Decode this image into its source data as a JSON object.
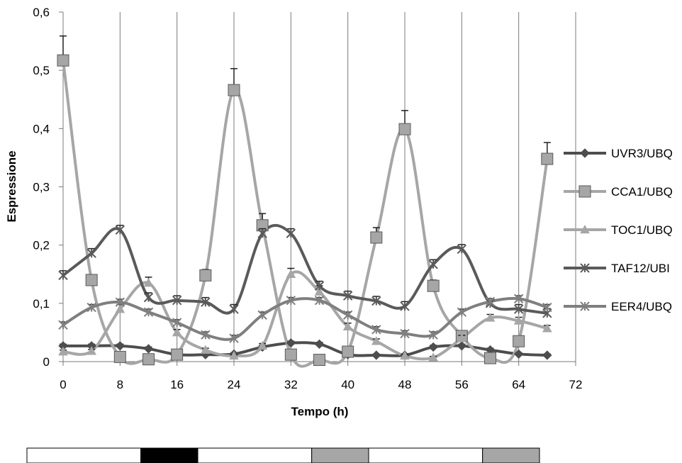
{
  "chart_data": {
    "type": "line",
    "title": "",
    "xlabel": "Tempo (h)",
    "ylabel": "Espressione",
    "xlim": [
      0,
      72
    ],
    "ylim": [
      0,
      0.6
    ],
    "x_ticks": [
      "0",
      "8",
      "16",
      "24",
      "32",
      "40",
      "48",
      "56",
      "64",
      "72"
    ],
    "y_ticks": [
      "0",
      "0,1",
      "0,2",
      "0,3",
      "0,4",
      "0,5",
      "0,6"
    ],
    "vertical_gridlines": true,
    "legend_position": "right",
    "x": [
      0,
      4,
      8,
      12,
      16,
      20,
      24,
      28,
      32,
      36,
      40,
      44,
      48,
      52,
      56,
      60,
      64,
      68
    ],
    "series": [
      {
        "name": "UVR3/UBQ",
        "color": "#4d4d4d",
        "marker": "diamond",
        "values": [
          0.027,
          0.027,
          0.027,
          0.022,
          0.012,
          0.012,
          0.013,
          0.025,
          0.032,
          0.03,
          0.012,
          0.011,
          0.011,
          0.025,
          0.027,
          0.02,
          0.013,
          0.011
        ],
        "error": [
          0.003,
          0.003,
          0.003,
          0.003,
          0.002,
          0.002,
          0.002,
          0.003,
          0.003,
          0.003,
          0.002,
          0.002,
          0.002,
          0.003,
          0.003,
          0.003,
          0.002,
          0.002
        ]
      },
      {
        "name": "CCA1/UBQ",
        "color": "#a6a6a6",
        "marker": "square",
        "values": [
          0.517,
          0.14,
          0.008,
          0.004,
          0.012,
          0.148,
          0.466,
          0.234,
          0.012,
          0.003,
          0.017,
          0.213,
          0.399,
          0.13,
          0.044,
          0.006,
          0.035,
          0.348
        ],
        "error": [
          0.042,
          0.008,
          0.002,
          0.002,
          0.002,
          0.01,
          0.037,
          0.02,
          0.003,
          0.002,
          0.004,
          0.017,
          0.032,
          0.01,
          0.006,
          0.002,
          0.005,
          0.028
        ]
      },
      {
        "name": "TOC1/UBQ",
        "color": "#a6a6a6",
        "marker": "triangle",
        "values": [
          0.017,
          0.018,
          0.09,
          0.135,
          0.05,
          0.02,
          0.01,
          0.027,
          0.15,
          0.12,
          0.06,
          0.035,
          0.01,
          0.007,
          0.04,
          0.075,
          0.07,
          0.057
        ],
        "error": [
          0.003,
          0.003,
          0.008,
          0.01,
          0.005,
          0.003,
          0.002,
          0.004,
          0.01,
          0.01,
          0.006,
          0.004,
          0.002,
          0.002,
          0.005,
          0.006,
          0.006,
          0.005
        ]
      },
      {
        "name": "TAF12/UBI",
        "color": "#5a5a5a",
        "marker": "asterisk",
        "values": [
          0.148,
          0.186,
          0.226,
          0.11,
          0.105,
          0.102,
          0.09,
          0.22,
          0.22,
          0.13,
          0.113,
          0.104,
          0.095,
          0.167,
          0.193,
          0.1,
          0.09,
          0.083
        ],
        "error": [
          0.008,
          0.008,
          0.008,
          0.008,
          0.008,
          0.008,
          0.008,
          0.008,
          0.008,
          0.008,
          0.008,
          0.008,
          0.008,
          0.008,
          0.008,
          0.008,
          0.008,
          0.008
        ]
      },
      {
        "name": "EER4/UBQ",
        "color": "#7f7f7f",
        "marker": "asterisk",
        "values": [
          0.063,
          0.093,
          0.102,
          0.085,
          0.067,
          0.046,
          0.04,
          0.08,
          0.105,
          0.105,
          0.08,
          0.055,
          0.048,
          0.046,
          0.085,
          0.103,
          0.108,
          0.093
        ],
        "error": [
          0.005,
          0.005,
          0.005,
          0.005,
          0.005,
          0.005,
          0.005,
          0.005,
          0.005,
          0.005,
          0.005,
          0.005,
          0.005,
          0.005,
          0.005,
          0.005,
          0.005,
          0.005
        ]
      }
    ],
    "light_dark_bar": [
      {
        "start": 0,
        "end": 16,
        "color": "#ffffff"
      },
      {
        "start": 16,
        "end": 24,
        "color": "#000000"
      },
      {
        "start": 24,
        "end": 40,
        "color": "#ffffff"
      },
      {
        "start": 40,
        "end": 48,
        "color": "#a6a6a6"
      },
      {
        "start": 48,
        "end": 64,
        "color": "#ffffff"
      },
      {
        "start": 64,
        "end": 72,
        "color": "#a6a6a6"
      }
    ]
  }
}
